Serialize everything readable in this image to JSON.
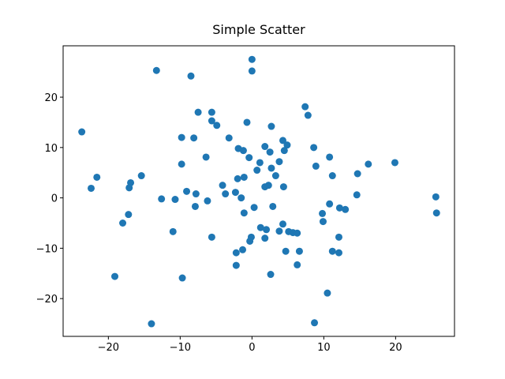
{
  "chart_data": {
    "type": "scatter",
    "title": "Simple Scatter",
    "color": "#1f77b4",
    "x": [
      -23.7,
      0,
      0,
      -13.3,
      -8.5,
      7.4,
      7.8,
      -7.5,
      -5.6,
      -5.6,
      -4.9,
      -0.7,
      2.7,
      -3.2,
      -9.8,
      -8.1,
      4.3,
      4.9,
      1.8,
      -1.9,
      -1.2,
      2.5,
      4.5,
      8.6,
      10.8,
      -6.4,
      -0.4,
      3.8,
      1.1,
      8.9,
      2.7,
      0.7,
      -9.8,
      16.2,
      19.9,
      14.7,
      11.2,
      3.3,
      -15.4,
      -21.6,
      -16.9,
      -17.1,
      -22.4,
      -2,
      -1.1,
      -4.1,
      2.3,
      1.8,
      4.4,
      -2.3,
      -3.7,
      -9.1,
      -7.8,
      -1.5,
      -12.6,
      -10.7,
      -6.2,
      -7.9,
      2.9,
      0.3,
      14.6,
      25.6,
      25.7,
      10.8,
      12.2,
      13,
      9.8,
      -1.1,
      -17.2,
      9.9,
      -18,
      4.3,
      1.2,
      2,
      3.8,
      5.1,
      5.7,
      6.3,
      -11,
      -0.1,
      -0.3,
      1.8,
      -5.6,
      12.1,
      4.7,
      6.6,
      11.2,
      12.1,
      -2.2,
      -1.3,
      -2.2,
      6.3,
      2.6,
      -19.1,
      -9.7,
      10.5,
      -14,
      8.7
    ],
    "y": [
      13.1,
      27.5,
      25.2,
      25.3,
      24.2,
      18.1,
      16.4,
      17,
      17,
      15.3,
      14.4,
      15,
      14.2,
      11.9,
      12,
      11.9,
      11.4,
      10.5,
      10.2,
      9.8,
      9.4,
      9.1,
      9.4,
      10,
      8.1,
      8.1,
      8,
      7.2,
      7,
      6.3,
      5.9,
      5.5,
      6.7,
      6.7,
      7,
      4.8,
      4.4,
      4.4,
      4.4,
      4.1,
      3,
      2,
      1.9,
      3.8,
      4.1,
      2.5,
      2.5,
      2.2,
      2.2,
      1.1,
      0.8,
      1.3,
      0.8,
      0,
      -0.2,
      -0.3,
      -0.6,
      -1.7,
      -1.7,
      -1.9,
      0.6,
      0.2,
      -3,
      -1.2,
      -2,
      -2.3,
      -3.1,
      -3,
      -3.3,
      -4.7,
      -5,
      -5.2,
      -5.9,
      -6.3,
      -6.6,
      -6.7,
      -6.9,
      -7,
      -6.7,
      -7.8,
      -8.6,
      -8,
      -7.8,
      -7.8,
      -10.6,
      -10.6,
      -10.6,
      -10.9,
      -10.9,
      -10.3,
      -13.4,
      -13.3,
      -15.2,
      -15.6,
      -15.9,
      -18.9,
      -25,
      -24.8
    ],
    "xlim": [
      -26.3,
      28.2
    ],
    "ylim": [
      -27.5,
      30.2
    ],
    "xticks": [
      {
        "value": -20,
        "label": "−20"
      },
      {
        "value": -10,
        "label": "−10"
      },
      0,
      10,
      20
    ],
    "yticks": [
      {
        "value": -20,
        "label": "−20"
      },
      {
        "value": -10,
        "label": "−10"
      },
      0,
      10,
      20
    ]
  }
}
